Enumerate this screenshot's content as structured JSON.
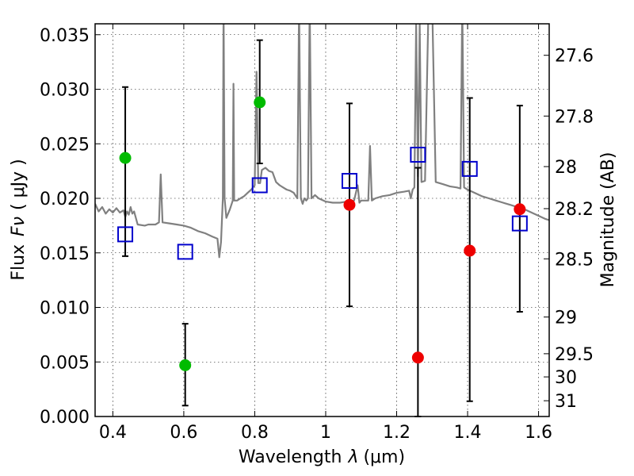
{
  "chart_data": {
    "type": "scatter",
    "xlabel": "Wavelength",
    "xlabel_symbol": "λ",
    "xlabel_unit": "(μm)",
    "ylabel": "Flux",
    "ylabel_symbol": "Fν",
    "ylabel_unit": "( μJy )",
    "y2label": "Magnitude (AB)",
    "xlim": [
      0.35,
      1.63
    ],
    "ylim": [
      0.0,
      0.036
    ],
    "grid": true,
    "x_ticks": [
      {
        "value": 0.4,
        "label": "0.4"
      },
      {
        "value": 0.6,
        "label": "0.6"
      },
      {
        "value": 0.8,
        "label": "0.8"
      },
      {
        "value": 1.0,
        "label": "1"
      },
      {
        "value": 1.2,
        "label": "1.2"
      },
      {
        "value": 1.4,
        "label": "1.4"
      },
      {
        "value": 1.6,
        "label": "1.6"
      }
    ],
    "y_ticks": [
      {
        "value": 0.0,
        "label": "0.000"
      },
      {
        "value": 0.005,
        "label": "0.005"
      },
      {
        "value": 0.01,
        "label": "0.010"
      },
      {
        "value": 0.015,
        "label": "0.015"
      },
      {
        "value": 0.02,
        "label": "0.020"
      },
      {
        "value": 0.025,
        "label": "0.025"
      },
      {
        "value": 0.03,
        "label": "0.030"
      },
      {
        "value": 0.035,
        "label": "0.035"
      }
    ],
    "y2_ticks": [
      {
        "value": 27.6,
        "label": "27.6"
      },
      {
        "value": 27.8,
        "label": "27.8"
      },
      {
        "value": 28.0,
        "label": "28"
      },
      {
        "value": 28.2,
        "label": "28.2"
      },
      {
        "value": 28.5,
        "label": "28.5"
      },
      {
        "value": 29.0,
        "label": "29"
      },
      {
        "value": 29.5,
        "label": "29.5"
      },
      {
        "value": 30.0,
        "label": "30"
      },
      {
        "value": 31.0,
        "label": "31"
      }
    ],
    "series": [
      {
        "kind": "spectrum",
        "color": "#808080",
        "points": [
          [
            0.35,
            0.0195
          ],
          [
            0.36,
            0.0188
          ],
          [
            0.37,
            0.0192
          ],
          [
            0.38,
            0.0186
          ],
          [
            0.39,
            0.019
          ],
          [
            0.4,
            0.0187
          ],
          [
            0.41,
            0.0191
          ],
          [
            0.42,
            0.0187
          ],
          [
            0.43,
            0.0189
          ],
          [
            0.435,
            0.0183
          ],
          [
            0.44,
            0.0188
          ],
          [
            0.445,
            0.0185
          ],
          [
            0.45,
            0.0192
          ],
          [
            0.455,
            0.0186
          ],
          [
            0.46,
            0.0188
          ],
          [
            0.47,
            0.0176
          ],
          [
            0.49,
            0.0175
          ],
          [
            0.5,
            0.0176
          ],
          [
            0.52,
            0.0176
          ],
          [
            0.53,
            0.0178
          ],
          [
            0.535,
            0.0222
          ],
          [
            0.54,
            0.0178
          ],
          [
            0.56,
            0.0177
          ],
          [
            0.58,
            0.0176
          ],
          [
            0.6,
            0.0175
          ],
          [
            0.62,
            0.0173
          ],
          [
            0.64,
            0.017
          ],
          [
            0.66,
            0.0168
          ],
          [
            0.68,
            0.0165
          ],
          [
            0.695,
            0.0163
          ],
          [
            0.7,
            0.0146
          ],
          [
            0.705,
            0.016
          ],
          [
            0.71,
            0.02
          ],
          [
            0.712,
            0.038
          ],
          [
            0.715,
            0.02
          ],
          [
            0.72,
            0.0182
          ],
          [
            0.73,
            0.019
          ],
          [
            0.738,
            0.0198
          ],
          [
            0.74,
            0.0305
          ],
          [
            0.742,
            0.0198
          ],
          [
            0.75,
            0.0198
          ],
          [
            0.76,
            0.02
          ],
          [
            0.77,
            0.0202
          ],
          [
            0.78,
            0.0205
          ],
          [
            0.79,
            0.0208
          ],
          [
            0.8,
            0.0212
          ],
          [
            0.805,
            0.0316
          ],
          [
            0.81,
            0.0214
          ],
          [
            0.815,
            0.0214
          ],
          [
            0.82,
            0.0226
          ],
          [
            0.83,
            0.0228
          ],
          [
            0.84,
            0.0225
          ],
          [
            0.85,
            0.0224
          ],
          [
            0.86,
            0.0215
          ],
          [
            0.87,
            0.0212
          ],
          [
            0.88,
            0.021
          ],
          [
            0.89,
            0.0208
          ],
          [
            0.9,
            0.0207
          ],
          [
            0.91,
            0.0205
          ],
          [
            0.92,
            0.02
          ],
          [
            0.925,
            0.038
          ],
          [
            0.93,
            0.02
          ],
          [
            0.935,
            0.0195
          ],
          [
            0.94,
            0.02
          ],
          [
            0.945,
            0.0198
          ],
          [
            0.95,
            0.02
          ],
          [
            0.955,
            0.038
          ],
          [
            0.96,
            0.02
          ],
          [
            0.97,
            0.0203
          ],
          [
            0.98,
            0.02
          ],
          [
            1.0,
            0.0197
          ],
          [
            1.02,
            0.0196
          ],
          [
            1.04,
            0.0196
          ],
          [
            1.06,
            0.0197
          ],
          [
            1.08,
            0.0198
          ],
          [
            1.09,
            0.0212
          ],
          [
            1.095,
            0.0196
          ],
          [
            1.1,
            0.0198
          ],
          [
            1.12,
            0.0198
          ],
          [
            1.125,
            0.0248
          ],
          [
            1.13,
            0.0198
          ],
          [
            1.14,
            0.02
          ],
          [
            1.16,
            0.0202
          ],
          [
            1.18,
            0.0203
          ],
          [
            1.2,
            0.0205
          ],
          [
            1.22,
            0.0206
          ],
          [
            1.235,
            0.0207
          ],
          [
            1.24,
            0.02
          ],
          [
            1.245,
            0.0208
          ],
          [
            1.25,
            0.021
          ],
          [
            1.255,
            0.036
          ],
          [
            1.26,
            0.022
          ],
          [
            1.265,
            0.036
          ],
          [
            1.27,
            0.0215
          ],
          [
            1.28,
            0.0216
          ],
          [
            1.29,
            0.038
          ],
          [
            1.3,
            0.038
          ],
          [
            1.31,
            0.0215
          ],
          [
            1.33,
            0.0213
          ],
          [
            1.35,
            0.0211
          ],
          [
            1.37,
            0.021
          ],
          [
            1.38,
            0.0209
          ],
          [
            1.385,
            0.038
          ],
          [
            1.39,
            0.021
          ],
          [
            1.4,
            0.0208
          ],
          [
            1.42,
            0.0205
          ],
          [
            1.44,
            0.0202
          ],
          [
            1.46,
            0.02
          ],
          [
            1.48,
            0.0198
          ],
          [
            1.5,
            0.0196
          ],
          [
            1.52,
            0.0194
          ],
          [
            1.54,
            0.0192
          ],
          [
            1.56,
            0.019
          ],
          [
            1.58,
            0.0187
          ],
          [
            1.6,
            0.0184
          ],
          [
            1.62,
            0.0181
          ],
          [
            1.63,
            0.018
          ]
        ]
      },
      {
        "kind": "errorbar-points",
        "marker": "circle",
        "color": "#00bb00",
        "points": [
          {
            "x": 0.435,
            "y": 0.0237,
            "yerr": [
              0.009,
              0.0065
            ]
          },
          {
            "x": 0.604,
            "y": 0.0047,
            "yerr": [
              0.0037,
              0.0038
            ]
          },
          {
            "x": 0.814,
            "y": 0.0288,
            "yerr": [
              0.0056,
              0.0057
            ]
          }
        ]
      },
      {
        "kind": "errorbar-points",
        "marker": "circle",
        "color": "#ee0000",
        "points": [
          {
            "x": 1.067,
            "y": 0.0194,
            "yerr": [
              0.0093,
              0.0093
            ]
          },
          {
            "x": 1.26,
            "y": 0.0054,
            "yerr": [
              0.0054,
              0.0174
            ]
          },
          {
            "x": 1.406,
            "y": 0.0152,
            "yerr": [
              0.0138,
              0.014
            ]
          },
          {
            "x": 1.547,
            "y": 0.019,
            "yerr": [
              0.0094,
              0.0095
            ]
          }
        ]
      },
      {
        "kind": "model-points",
        "marker": "square-open",
        "color": "#0000cc",
        "points": [
          {
            "x": 0.435,
            "y": 0.0167
          },
          {
            "x": 0.604,
            "y": 0.0151
          },
          {
            "x": 0.814,
            "y": 0.0212
          },
          {
            "x": 1.067,
            "y": 0.0216
          },
          {
            "x": 1.26,
            "y": 0.024
          },
          {
            "x": 1.406,
            "y": 0.0227
          },
          {
            "x": 1.547,
            "y": 0.0177
          }
        ]
      }
    ]
  }
}
